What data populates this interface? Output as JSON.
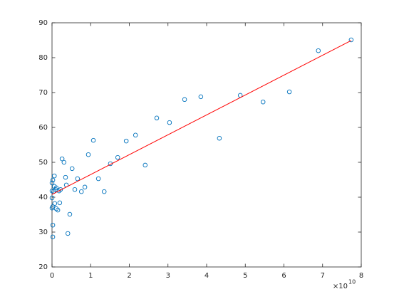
{
  "chart_data": {
    "type": "scatter",
    "x_multiplier": {
      "base": "×10",
      "exponent": "10"
    },
    "xlim": [
      0,
      8
    ],
    "xticks": [
      0,
      1,
      2,
      3,
      4,
      5,
      6,
      7,
      8
    ],
    "ylim": [
      20,
      90
    ],
    "yticks": [
      20,
      30,
      40,
      50,
      60,
      70,
      80,
      90
    ],
    "grid": false,
    "box": true,
    "series": [
      {
        "type": "scatter",
        "color": "#0072bd",
        "x": [
          7.74,
          6.89,
          6.14,
          5.46,
          4.87,
          4.33,
          3.85,
          3.43,
          3.04,
          2.71,
          2.41,
          2.16,
          1.92,
          1.7,
          1.51,
          1.35,
          1.2,
          1.07,
          0.94,
          0.85,
          0.76,
          0.66,
          0.59,
          0.52,
          0.46,
          0.41,
          0.35,
          0.37,
          0.31,
          0.26,
          0.22,
          0.18,
          0.2,
          0.15,
          0.11,
          0.11,
          0.09,
          0.07,
          0.06,
          0.06,
          0.04,
          0.02,
          0.02,
          0.02,
          0.02,
          0.0,
          0.0,
          0.0,
          0.0
        ],
        "values": [
          85.1,
          82.0,
          70.2,
          67.3,
          69.2,
          56.9,
          68.8,
          68.0,
          61.4,
          62.7,
          49.2,
          57.8,
          56.1,
          51.4,
          49.6,
          41.6,
          45.3,
          56.3,
          52.2,
          42.9,
          41.6,
          45.3,
          42.2,
          48.2,
          35.1,
          29.6,
          45.7,
          43.5,
          50.0,
          51.0,
          42.2,
          41.8,
          38.4,
          36.3,
          42.7,
          36.7,
          42.2,
          38.2,
          46.1,
          43.1,
          41.6,
          37.3,
          44.9,
          32.0,
          28.6,
          44.1,
          39.8,
          36.9,
          41.8
        ]
      },
      {
        "type": "line",
        "color": "#ff0000",
        "x": [
          0,
          7.74
        ],
        "values": [
          40.8,
          84.9
        ]
      }
    ]
  }
}
